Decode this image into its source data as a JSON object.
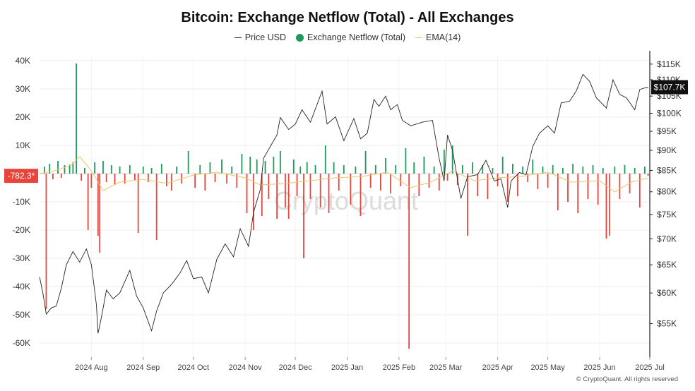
{
  "chart_data": {
    "type": "bar+line",
    "title": "Bitcoin: Exchange Netflow (Total) - All Exchanges",
    "legend": [
      {
        "label": "Price USD",
        "marker": "line",
        "color": "#222222"
      },
      {
        "label": "Exchange Netflow (Total)",
        "marker": "dot",
        "color": "#1e9a5a"
      },
      {
        "label": "EMA(14)",
        "marker": "line",
        "color": "#f5c16c"
      }
    ],
    "x_ticks": [
      "2024 Aug",
      "2024 Sep",
      "2024 Oct",
      "2024 Nov",
      "2024 Dec",
      "2025 Jan",
      "2025 Feb",
      "2025 Mar",
      "2025 Apr",
      "2025 May",
      "2025 Jun",
      "2025 Jul"
    ],
    "x_range": [
      "2024-07-01",
      "2025-07-01"
    ],
    "y_left": {
      "ticks": [
        "40K",
        "30K",
        "20K",
        "10K",
        "0",
        "-10K",
        "-20K",
        "-30K",
        "-40K",
        "-50K",
        "-60K"
      ],
      "range": [
        -65000,
        42000
      ]
    },
    "y_right": {
      "ticks": [
        "$115K",
        "$110K",
        "$105K",
        "$100K",
        "$95K",
        "$90K",
        "$85K",
        "$80K",
        "$75K",
        "$70K",
        "$65K",
        "$60K",
        "$55K"
      ],
      "scale": "log",
      "range": [
        50000,
        118000
      ]
    },
    "current_netflow_label": "-782.3*",
    "current_price_label": "$107.7K",
    "grid": true,
    "colors": {
      "inflow": "#1e9a5a",
      "outflow": "#e8453c",
      "price": "#222222",
      "ema": "#f5c16c"
    },
    "netflow_series": [
      {
        "date": "2024-07-04",
        "value": 2500
      },
      {
        "date": "2024-07-05",
        "value": -48000
      },
      {
        "date": "2024-07-07",
        "value": 3500
      },
      {
        "date": "2024-07-09",
        "value": -2000
      },
      {
        "date": "2024-07-12",
        "value": 4500
      },
      {
        "date": "2024-07-14",
        "value": -1500
      },
      {
        "date": "2024-07-16",
        "value": 3000
      },
      {
        "date": "2024-07-19",
        "value": 3200
      },
      {
        "date": "2024-07-21",
        "value": 4000
      },
      {
        "date": "2024-07-23",
        "value": 39000
      },
      {
        "date": "2024-07-26",
        "value": -2500
      },
      {
        "date": "2024-07-28",
        "value": 2000
      },
      {
        "date": "2024-07-30",
        "value": -20000
      },
      {
        "date": "2024-08-01",
        "value": -5000
      },
      {
        "date": "2024-08-03",
        "value": 4000
      },
      {
        "date": "2024-08-05",
        "value": -22000
      },
      {
        "date": "2024-08-06",
        "value": -28000
      },
      {
        "date": "2024-08-08",
        "value": 4500
      },
      {
        "date": "2024-08-10",
        "value": -3000
      },
      {
        "date": "2024-08-13",
        "value": 3000
      },
      {
        "date": "2024-08-15",
        "value": -4000
      },
      {
        "date": "2024-08-18",
        "value": 2500
      },
      {
        "date": "2024-08-21",
        "value": -3500
      },
      {
        "date": "2024-08-24",
        "value": 3000
      },
      {
        "date": "2024-08-27",
        "value": -2500
      },
      {
        "date": "2024-08-29",
        "value": -21000
      },
      {
        "date": "2024-09-01",
        "value": 2500
      },
      {
        "date": "2024-09-04",
        "value": -3000
      },
      {
        "date": "2024-09-06",
        "value": 2000
      },
      {
        "date": "2024-09-09",
        "value": -23500
      },
      {
        "date": "2024-09-12",
        "value": 3500
      },
      {
        "date": "2024-09-15",
        "value": -4500
      },
      {
        "date": "2024-09-18",
        "value": -6000
      },
      {
        "date": "2024-09-21",
        "value": 2500
      },
      {
        "date": "2024-09-24",
        "value": -3500
      },
      {
        "date": "2024-09-28",
        "value": 8000
      },
      {
        "date": "2024-10-02",
        "value": -5000
      },
      {
        "date": "2024-10-05",
        "value": 3000
      },
      {
        "date": "2024-10-08",
        "value": -6000
      },
      {
        "date": "2024-10-11",
        "value": 4000
      },
      {
        "date": "2024-10-14",
        "value": -3000
      },
      {
        "date": "2024-10-18",
        "value": 5000
      },
      {
        "date": "2024-10-21",
        "value": -3500
      },
      {
        "date": "2024-10-24",
        "value": 2500
      },
      {
        "date": "2024-10-27",
        "value": -5000
      },
      {
        "date": "2024-10-30",
        "value": 7000
      },
      {
        "date": "2024-11-02",
        "value": -14000
      },
      {
        "date": "2024-11-04",
        "value": 6000
      },
      {
        "date": "2024-11-06",
        "value": -20000
      },
      {
        "date": "2024-11-08",
        "value": 5000
      },
      {
        "date": "2024-11-11",
        "value": -15000
      },
      {
        "date": "2024-11-13",
        "value": 4500
      },
      {
        "date": "2024-11-15",
        "value": -9000
      },
      {
        "date": "2024-11-18",
        "value": 6000
      },
      {
        "date": "2024-11-20",
        "value": -16000
      },
      {
        "date": "2024-11-22",
        "value": 8000
      },
      {
        "date": "2024-11-25",
        "value": -12000
      },
      {
        "date": "2024-11-27",
        "value": -16000
      },
      {
        "date": "2024-11-30",
        "value": 5000
      },
      {
        "date": "2024-12-02",
        "value": -8000
      },
      {
        "date": "2024-12-04",
        "value": 2500
      },
      {
        "date": "2024-12-06",
        "value": -30000
      },
      {
        "date": "2024-12-08",
        "value": 4000
      },
      {
        "date": "2024-12-10",
        "value": -9000
      },
      {
        "date": "2024-12-13",
        "value": 3000
      },
      {
        "date": "2024-12-16",
        "value": -12000
      },
      {
        "date": "2024-12-19",
        "value": 10000
      },
      {
        "date": "2024-12-21",
        "value": -14000
      },
      {
        "date": "2024-12-24",
        "value": 4000
      },
      {
        "date": "2024-12-27",
        "value": -6000
      },
      {
        "date": "2024-12-30",
        "value": 3000
      },
      {
        "date": "2025-01-03",
        "value": -11000
      },
      {
        "date": "2025-01-06",
        "value": 2500
      },
      {
        "date": "2025-01-09",
        "value": -15000
      },
      {
        "date": "2025-01-12",
        "value": 8000
      },
      {
        "date": "2025-01-15",
        "value": -5000
      },
      {
        "date": "2025-01-18",
        "value": 3000
      },
      {
        "date": "2025-01-21",
        "value": -6000
      },
      {
        "date": "2025-01-24",
        "value": 5500
      },
      {
        "date": "2025-01-27",
        "value": -7000
      },
      {
        "date": "2025-01-30",
        "value": 3000
      },
      {
        "date": "2025-02-02",
        "value": -4500
      },
      {
        "date": "2025-02-05",
        "value": 9000
      },
      {
        "date": "2025-02-07",
        "value": -62000
      },
      {
        "date": "2025-02-10",
        "value": 4000
      },
      {
        "date": "2025-02-13",
        "value": -8000
      },
      {
        "date": "2025-02-16",
        "value": 6000
      },
      {
        "date": "2025-02-19",
        "value": -5000
      },
      {
        "date": "2025-02-22",
        "value": 2500
      },
      {
        "date": "2025-02-25",
        "value": -6000
      },
      {
        "date": "2025-02-28",
        "value": 8500
      },
      {
        "date": "2025-03-02",
        "value": -2500
      },
      {
        "date": "2025-03-05",
        "value": 10000
      },
      {
        "date": "2025-03-08",
        "value": -4000
      },
      {
        "date": "2025-03-11",
        "value": 3000
      },
      {
        "date": "2025-03-14",
        "value": -22000
      },
      {
        "date": "2025-03-17",
        "value": 4000
      },
      {
        "date": "2025-03-20",
        "value": -8000
      },
      {
        "date": "2025-03-23",
        "value": 3000
      },
      {
        "date": "2025-03-26",
        "value": -9000
      },
      {
        "date": "2025-03-29",
        "value": 2000
      },
      {
        "date": "2025-04-01",
        "value": -4500
      },
      {
        "date": "2025-04-04",
        "value": 6000
      },
      {
        "date": "2025-04-07",
        "value": -10000
      },
      {
        "date": "2025-04-10",
        "value": 3500
      },
      {
        "date": "2025-04-13",
        "value": -8000
      },
      {
        "date": "2025-04-16",
        "value": 2500
      },
      {
        "date": "2025-04-19",
        "value": -3000
      },
      {
        "date": "2025-04-22",
        "value": 5000
      },
      {
        "date": "2025-04-25",
        "value": -5500
      },
      {
        "date": "2025-04-28",
        "value": 2500
      },
      {
        "date": "2025-05-01",
        "value": -5000
      },
      {
        "date": "2025-05-04",
        "value": 3000
      },
      {
        "date": "2025-05-07",
        "value": -13000
      },
      {
        "date": "2025-05-10",
        "value": 2000
      },
      {
        "date": "2025-05-13",
        "value": -10000
      },
      {
        "date": "2025-05-16",
        "value": 3500
      },
      {
        "date": "2025-05-19",
        "value": -14000
      },
      {
        "date": "2025-05-22",
        "value": 2500
      },
      {
        "date": "2025-05-25",
        "value": -9000
      },
      {
        "date": "2025-05-28",
        "value": 3000
      },
      {
        "date": "2025-05-31",
        "value": -11000
      },
      {
        "date": "2025-06-03",
        "value": 2000
      },
      {
        "date": "2025-06-05",
        "value": -23000
      },
      {
        "date": "2025-06-07",
        "value": -22000
      },
      {
        "date": "2025-06-10",
        "value": 2500
      },
      {
        "date": "2025-06-13",
        "value": -9000
      },
      {
        "date": "2025-06-16",
        "value": 3000
      },
      {
        "date": "2025-06-19",
        "value": -7000
      },
      {
        "date": "2025-06-22",
        "value": 2000
      },
      {
        "date": "2025-06-25",
        "value": -12000
      },
      {
        "date": "2025-06-28",
        "value": 2500
      },
      {
        "date": "2025-06-30",
        "value": -782.3
      }
    ],
    "ema_series": [
      {
        "date": "2024-07-01",
        "value": 0
      },
      {
        "date": "2024-07-10",
        "value": 1000
      },
      {
        "date": "2024-07-20",
        "value": 3000
      },
      {
        "date": "2024-07-25",
        "value": 6000
      },
      {
        "date": "2024-08-01",
        "value": 1000
      },
      {
        "date": "2024-08-08",
        "value": -6000
      },
      {
        "date": "2024-08-18",
        "value": -3000
      },
      {
        "date": "2024-09-01",
        "value": -2000
      },
      {
        "date": "2024-09-15",
        "value": -3500
      },
      {
        "date": "2024-10-01",
        "value": -500
      },
      {
        "date": "2024-10-15",
        "value": 500
      },
      {
        "date": "2024-11-01",
        "value": -1500
      },
      {
        "date": "2024-11-10",
        "value": -4000
      },
      {
        "date": "2024-11-25",
        "value": -3500
      },
      {
        "date": "2024-12-10",
        "value": -2500
      },
      {
        "date": "2024-12-25",
        "value": -1500
      },
      {
        "date": "2025-01-10",
        "value": -1000
      },
      {
        "date": "2025-01-25",
        "value": 500
      },
      {
        "date": "2025-02-08",
        "value": -5000
      },
      {
        "date": "2025-02-20",
        "value": -3000
      },
      {
        "date": "2025-03-05",
        "value": 1000
      },
      {
        "date": "2025-03-18",
        "value": -2500
      },
      {
        "date": "2025-04-01",
        "value": -1500
      },
      {
        "date": "2025-04-15",
        "value": -1000
      },
      {
        "date": "2025-05-01",
        "value": 500
      },
      {
        "date": "2025-05-15",
        "value": -3000
      },
      {
        "date": "2025-06-01",
        "value": -2500
      },
      {
        "date": "2025-06-10",
        "value": -6500
      },
      {
        "date": "2025-06-20",
        "value": -3000
      },
      {
        "date": "2025-06-30",
        "value": -1500
      }
    ],
    "price_series": [
      {
        "date": "2024-07-01",
        "value": 62800
      },
      {
        "date": "2024-07-03",
        "value": 60000
      },
      {
        "date": "2024-07-05",
        "value": 56500
      },
      {
        "date": "2024-07-08",
        "value": 57500
      },
      {
        "date": "2024-07-11",
        "value": 57800
      },
      {
        "date": "2024-07-14",
        "value": 60800
      },
      {
        "date": "2024-07-17",
        "value": 65000
      },
      {
        "date": "2024-07-21",
        "value": 67500
      },
      {
        "date": "2024-07-25",
        "value": 65500
      },
      {
        "date": "2024-07-29",
        "value": 68000
      },
      {
        "date": "2024-08-01",
        "value": 65000
      },
      {
        "date": "2024-08-04",
        "value": 58000
      },
      {
        "date": "2024-08-05",
        "value": 53500
      },
      {
        "date": "2024-08-07",
        "value": 56000
      },
      {
        "date": "2024-08-10",
        "value": 60500
      },
      {
        "date": "2024-08-14",
        "value": 59000
      },
      {
        "date": "2024-08-18",
        "value": 60000
      },
      {
        "date": "2024-08-24",
        "value": 64000
      },
      {
        "date": "2024-08-28",
        "value": 59500
      },
      {
        "date": "2024-09-01",
        "value": 57500
      },
      {
        "date": "2024-09-06",
        "value": 53900
      },
      {
        "date": "2024-09-09",
        "value": 57000
      },
      {
        "date": "2024-09-13",
        "value": 60000
      },
      {
        "date": "2024-09-18",
        "value": 61500
      },
      {
        "date": "2024-09-23",
        "value": 63500
      },
      {
        "date": "2024-09-27",
        "value": 65800
      },
      {
        "date": "2024-10-01",
        "value": 62500
      },
      {
        "date": "2024-10-06",
        "value": 62800
      },
      {
        "date": "2024-10-10",
        "value": 60000
      },
      {
        "date": "2024-10-15",
        "value": 66000
      },
      {
        "date": "2024-10-20",
        "value": 69000
      },
      {
        "date": "2024-10-25",
        "value": 66500
      },
      {
        "date": "2024-10-29",
        "value": 72000
      },
      {
        "date": "2024-11-03",
        "value": 68500
      },
      {
        "date": "2024-11-06",
        "value": 75500
      },
      {
        "date": "2024-11-10",
        "value": 80500
      },
      {
        "date": "2024-11-12",
        "value": 88000
      },
      {
        "date": "2024-11-16",
        "value": 91000
      },
      {
        "date": "2024-11-20",
        "value": 94000
      },
      {
        "date": "2024-11-22",
        "value": 98800
      },
      {
        "date": "2024-11-27",
        "value": 95500
      },
      {
        "date": "2024-12-01",
        "value": 97000
      },
      {
        "date": "2024-12-05",
        "value": 101000
      },
      {
        "date": "2024-12-10",
        "value": 97500
      },
      {
        "date": "2024-12-17",
        "value": 106500
      },
      {
        "date": "2024-12-20",
        "value": 97000
      },
      {
        "date": "2024-12-25",
        "value": 99000
      },
      {
        "date": "2024-12-30",
        "value": 92500
      },
      {
        "date": "2025-01-05",
        "value": 98500
      },
      {
        "date": "2025-01-09",
        "value": 93000
      },
      {
        "date": "2025-01-13",
        "value": 94500
      },
      {
        "date": "2025-01-17",
        "value": 104000
      },
      {
        "date": "2025-01-20",
        "value": 102000
      },
      {
        "date": "2025-01-24",
        "value": 105000
      },
      {
        "date": "2025-01-27",
        "value": 101000
      },
      {
        "date": "2025-01-31",
        "value": 102500
      },
      {
        "date": "2025-02-03",
        "value": 98000
      },
      {
        "date": "2025-02-08",
        "value": 96500
      },
      {
        "date": "2025-02-15",
        "value": 97500
      },
      {
        "date": "2025-02-21",
        "value": 98000
      },
      {
        "date": "2025-02-25",
        "value": 88000
      },
      {
        "date": "2025-02-28",
        "value": 82500
      },
      {
        "date": "2025-03-02",
        "value": 94000
      },
      {
        "date": "2025-03-05",
        "value": 90000
      },
      {
        "date": "2025-03-10",
        "value": 78500
      },
      {
        "date": "2025-03-14",
        "value": 83500
      },
      {
        "date": "2025-03-20",
        "value": 84000
      },
      {
        "date": "2025-03-25",
        "value": 87500
      },
      {
        "date": "2025-03-30",
        "value": 82500
      },
      {
        "date": "2025-04-03",
        "value": 83000
      },
      {
        "date": "2025-04-07",
        "value": 76500
      },
      {
        "date": "2025-04-09",
        "value": 82500
      },
      {
        "date": "2025-04-14",
        "value": 84500
      },
      {
        "date": "2025-04-18",
        "value": 84000
      },
      {
        "date": "2025-04-22",
        "value": 91000
      },
      {
        "date": "2025-04-26",
        "value": 94500
      },
      {
        "date": "2025-05-01",
        "value": 96500
      },
      {
        "date": "2025-05-05",
        "value": 94500
      },
      {
        "date": "2025-05-09",
        "value": 103000
      },
      {
        "date": "2025-05-14",
        "value": 103500
      },
      {
        "date": "2025-05-18",
        "value": 106500
      },
      {
        "date": "2025-05-22",
        "value": 111700
      },
      {
        "date": "2025-05-26",
        "value": 109500
      },
      {
        "date": "2025-05-30",
        "value": 104500
      },
      {
        "date": "2025-06-05",
        "value": 101500
      },
      {
        "date": "2025-06-09",
        "value": 110000
      },
      {
        "date": "2025-06-13",
        "value": 105500
      },
      {
        "date": "2025-06-17",
        "value": 104500
      },
      {
        "date": "2025-06-22",
        "value": 101000
      },
      {
        "date": "2025-06-25",
        "value": 107000
      },
      {
        "date": "2025-06-28",
        "value": 107500
      },
      {
        "date": "2025-06-30",
        "value": 107700
      }
    ]
  },
  "watermark": "CryptoQuant",
  "footer": "© CryptoQuant. All rights reserved"
}
